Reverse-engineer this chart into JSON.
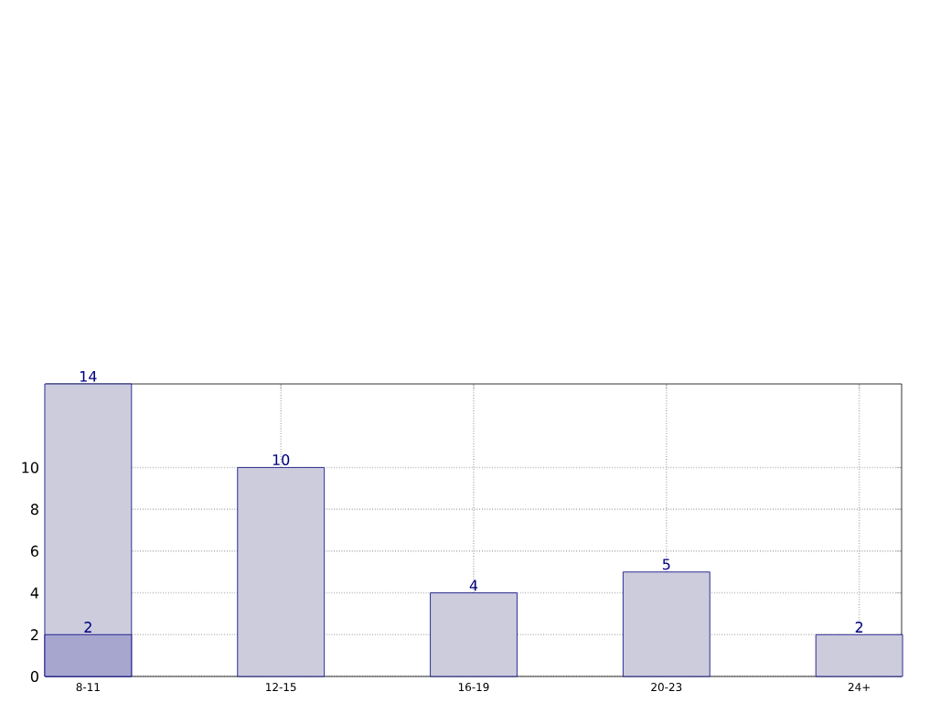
{
  "chart_data": {
    "type": "bar",
    "categories": [
      "8-11",
      "12-15",
      "16-19",
      "20-23",
      "24+"
    ],
    "series": [
      {
        "color": "#ccccdd",
        "values": [
          14,
          10,
          4,
          5,
          2
        ]
      },
      {
        "color": "#a6a6cf",
        "values": [
          2,
          null,
          null,
          null,
          null
        ]
      }
    ],
    "ylim": [
      0,
      14
    ],
    "yticks": [
      0,
      2,
      4,
      6,
      8,
      10
    ],
    "grid": true,
    "data_labels": true
  }
}
